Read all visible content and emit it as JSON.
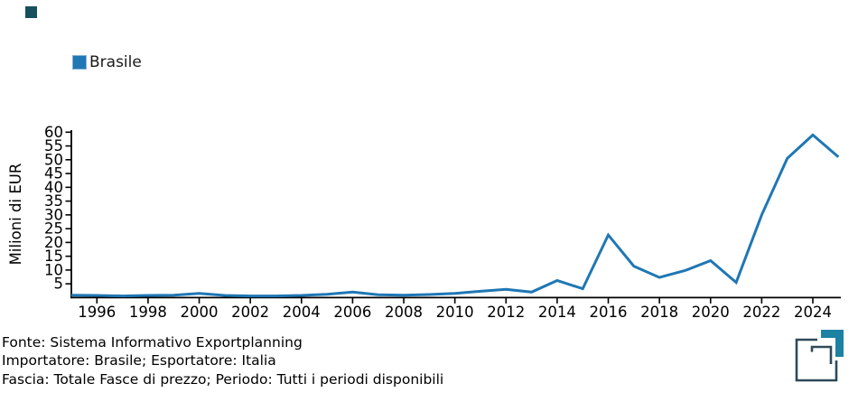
{
  "corner_mark": {
    "color": "#16505e"
  },
  "legend": {
    "label": "Brasile",
    "swatch_color": "#1f77b4"
  },
  "chart_data": {
    "type": "line",
    "title": "",
    "xlabel": "",
    "ylabel": "Milioni di EUR",
    "grid": false,
    "legend_position": "top-left",
    "xlim": [
      1995,
      2025
    ],
    "ylim": [
      0,
      60
    ],
    "x_ticks": [
      1996,
      1998,
      2000,
      2002,
      2004,
      2006,
      2008,
      2010,
      2012,
      2014,
      2016,
      2018,
      2020,
      2022,
      2024
    ],
    "y_ticks": [
      5,
      10,
      15,
      20,
      25,
      30,
      35,
      40,
      45,
      50,
      55,
      60
    ],
    "series": [
      {
        "name": "Brasile",
        "color": "#1f77b4",
        "x": [
          1995,
          1996,
          1997,
          1998,
          1999,
          2000,
          2001,
          2002,
          2003,
          2004,
          2005,
          2006,
          2007,
          2008,
          2009,
          2010,
          2011,
          2012,
          2013,
          2014,
          2015,
          2016,
          2017,
          2018,
          2019,
          2020,
          2021,
          2022,
          2023,
          2024,
          2025
        ],
        "values": [
          0.9,
          0.8,
          0.6,
          0.8,
          0.9,
          1.5,
          0.8,
          0.6,
          0.6,
          0.8,
          1.2,
          2.0,
          1.0,
          0.9,
          1.1,
          1.5,
          2.3,
          3.0,
          2.0,
          6.2,
          3.2,
          22.7,
          11.4,
          7.3,
          9.8,
          13.4,
          5.5,
          30.0,
          50.5,
          59.0,
          51.0
        ]
      }
    ]
  },
  "footer": {
    "lines": [
      "Fonte: Sistema Informativo Exportplanning",
      "Importatore: Brasile; Esportatore: Italia",
      "Fascia: Totale Fasce di prezzo; Periodo: Tutti i periodi disponibili"
    ]
  },
  "logo": {
    "dark_color": "#2e4a5a",
    "teal_color": "#1c81a2"
  }
}
